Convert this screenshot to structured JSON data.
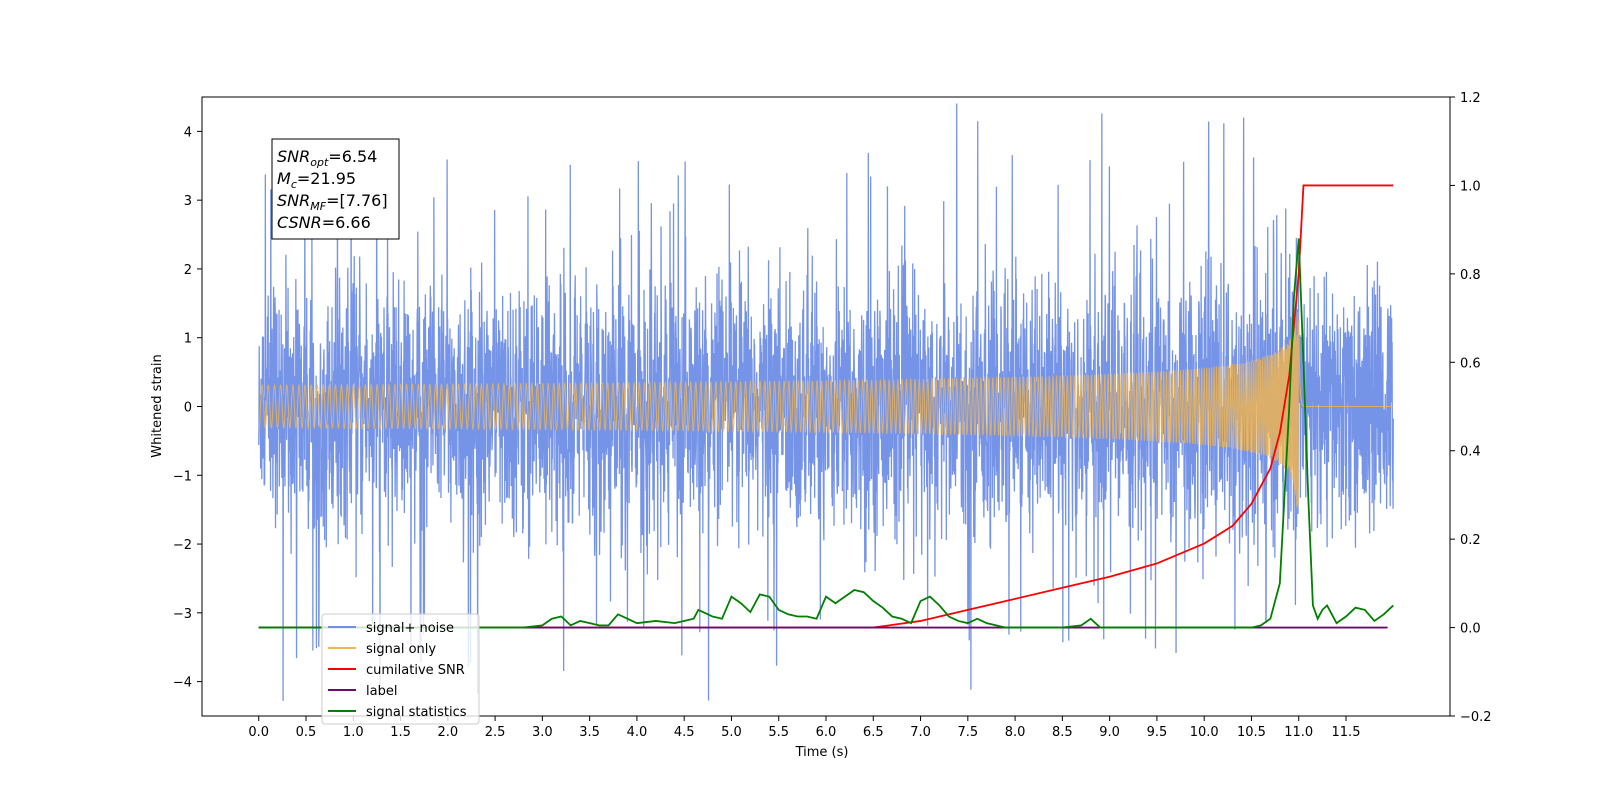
{
  "chart_data": {
    "type": "line",
    "xlabel": "Time (s)",
    "ylabel_left": "Whitened strain",
    "ylabel_right": "",
    "xlim": [
      -0.6,
      12.6
    ],
    "ylim_left": [
      -4.5,
      4.5
    ],
    "ylim_right": [
      -0.2,
      1.2
    ],
    "x_ticks": [
      "0.0",
      "0.5",
      "1.0",
      "1.5",
      "2.0",
      "2.5",
      "3.0",
      "3.5",
      "4.0",
      "4.5",
      "5.0",
      "5.5",
      "6.0",
      "6.5",
      "7.0",
      "7.5",
      "8.0",
      "8.5",
      "9.0",
      "9.5",
      "10.0",
      "10.5",
      "11.0",
      "11.5"
    ],
    "x_tick_values": [
      0.0,
      0.5,
      1.0,
      1.5,
      2.0,
      2.5,
      3.0,
      3.5,
      4.0,
      4.5,
      5.0,
      5.5,
      6.0,
      6.5,
      7.0,
      7.5,
      8.0,
      8.5,
      9.0,
      9.5,
      10.0,
      10.5,
      11.0,
      11.5
    ],
    "y_ticks_left": [
      "4",
      "3",
      "2",
      "1",
      "0",
      "−1",
      "−2",
      "−3",
      "−4"
    ],
    "y_tick_values_left": [
      4,
      3,
      2,
      1,
      0,
      -1,
      -2,
      -3,
      -4
    ],
    "y_ticks_right": [
      "1.2",
      "1.0",
      "0.8",
      "0.6",
      "0.4",
      "0.2",
      "0.0",
      "−0.2"
    ],
    "y_tick_values_right": [
      1.2,
      1.0,
      0.8,
      0.6,
      0.4,
      0.2,
      0.0,
      -0.2
    ],
    "legend_position": "lower-left",
    "annotation": {
      "lines": [
        {
          "base": "SNR",
          "sub": "opt",
          "rest": "=6.54"
        },
        {
          "base": "M",
          "sub": "c",
          "rest": "=21.95"
        },
        {
          "base": "SNR",
          "sub": "MF",
          "rest": "=[7.76]"
        },
        {
          "base": "CSNR",
          "sub": "",
          "rest": "=6.66"
        }
      ]
    },
    "series": [
      {
        "name": "signal+ noise",
        "axis": "left",
        "color": "#6f8ee6",
        "x_range": [
          0.0,
          12.0
        ],
        "envelope_upper": 2.6,
        "envelope_lower": -2.6,
        "peak_max": 4.05,
        "peak_min": -4.1
      },
      {
        "name": "signal only",
        "axis": "left",
        "color": "#f5b54a",
        "x_range": [
          0.0,
          12.0
        ],
        "chirp_peak_time": 11.0,
        "amplitude_peak": 1.5
      },
      {
        "name": "cumilative SNR",
        "axis": "right",
        "color": "#ff0000",
        "x": [
          0.0,
          6.5,
          7.0,
          7.5,
          8.0,
          8.5,
          9.0,
          9.5,
          10.0,
          10.3,
          10.5,
          10.7,
          10.8,
          10.9,
          11.0,
          11.05,
          11.1,
          12.0
        ],
        "y": [
          0.0,
          0.0,
          0.015,
          0.04,
          0.065,
          0.09,
          0.115,
          0.145,
          0.19,
          0.23,
          0.28,
          0.36,
          0.44,
          0.57,
          0.8,
          1.0,
          1.0,
          1.0
        ]
      },
      {
        "name": "label",
        "axis": "right",
        "color": "#6a0d6a",
        "x": [
          0.0,
          11.94
        ],
        "y": [
          0.0,
          0.0
        ]
      },
      {
        "name": "signal statistics",
        "axis": "right",
        "color": "#008000",
        "x": [
          0.0,
          2.8,
          3.0,
          3.1,
          3.2,
          3.3,
          3.4,
          3.5,
          3.6,
          3.7,
          3.8,
          3.9,
          4.0,
          4.2,
          4.4,
          4.6,
          4.65,
          4.7,
          4.8,
          4.9,
          5.0,
          5.1,
          5.2,
          5.3,
          5.4,
          5.5,
          5.6,
          5.7,
          5.8,
          5.9,
          6.0,
          6.1,
          6.2,
          6.3,
          6.4,
          6.5,
          6.6,
          6.7,
          6.8,
          6.9,
          7.0,
          7.1,
          7.2,
          7.3,
          7.4,
          7.5,
          7.6,
          7.7,
          7.8,
          7.9,
          8.0,
          8.5,
          8.7,
          8.8,
          8.9,
          9.0,
          9.5,
          10.0,
          10.5,
          10.6,
          10.7,
          10.8,
          10.9,
          10.95,
          11.0,
          11.05,
          11.1,
          11.15,
          11.2,
          11.25,
          11.3,
          11.35,
          11.4,
          11.5,
          11.6,
          11.7,
          11.8,
          11.9,
          12.0
        ],
        "y": [
          0.0,
          0.0,
          0.005,
          0.02,
          0.025,
          0.005,
          0.015,
          0.01,
          0.005,
          0.005,
          0.03,
          0.02,
          0.01,
          0.015,
          0.01,
          0.02,
          0.04,
          0.035,
          0.025,
          0.02,
          0.07,
          0.055,
          0.035,
          0.075,
          0.07,
          0.04,
          0.03,
          0.025,
          0.025,
          0.02,
          0.07,
          0.055,
          0.07,
          0.085,
          0.08,
          0.06,
          0.045,
          0.025,
          0.02,
          0.01,
          0.06,
          0.07,
          0.05,
          0.025,
          0.015,
          0.01,
          0.02,
          0.01,
          0.005,
          0.0,
          0.0,
          0.0,
          0.005,
          0.02,
          0.0,
          0.0,
          0.0,
          0.0,
          0.0,
          0.005,
          0.02,
          0.1,
          0.5,
          0.75,
          0.88,
          0.6,
          0.3,
          0.05,
          0.02,
          0.04,
          0.05,
          0.03,
          0.01,
          0.025,
          0.045,
          0.04,
          0.015,
          0.03,
          0.05
        ]
      }
    ]
  }
}
